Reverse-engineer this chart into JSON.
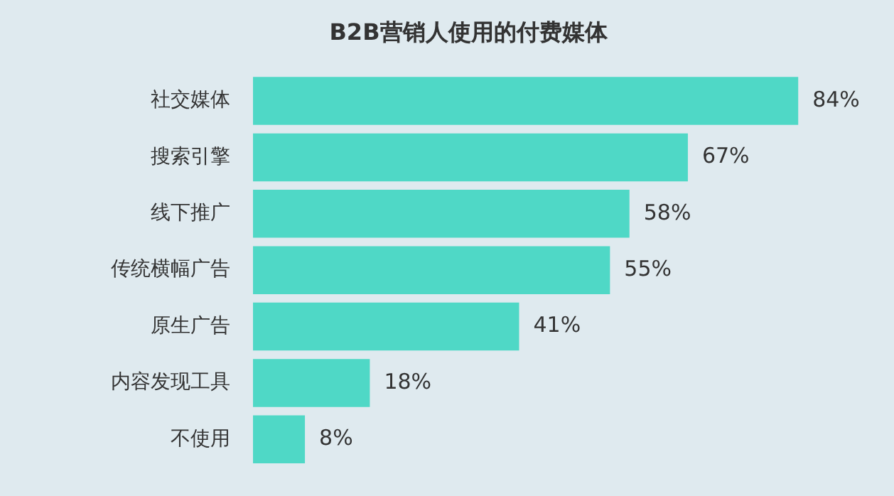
{
  "chart_data": {
    "type": "bar",
    "orientation": "horizontal",
    "title": "B2B营销人使用的付费媒体",
    "categories": [
      "社交媒体",
      "搜索引擎",
      "线下推广",
      "传统横幅广告",
      "原生广告",
      "内容发现工具",
      "不使用"
    ],
    "values": [
      84,
      67,
      58,
      55,
      41,
      18,
      8
    ],
    "value_labels": [
      "84%",
      "67%",
      "58%",
      "55%",
      "41%",
      "18%",
      "8%"
    ],
    "color": "#4fd8c6"
  }
}
